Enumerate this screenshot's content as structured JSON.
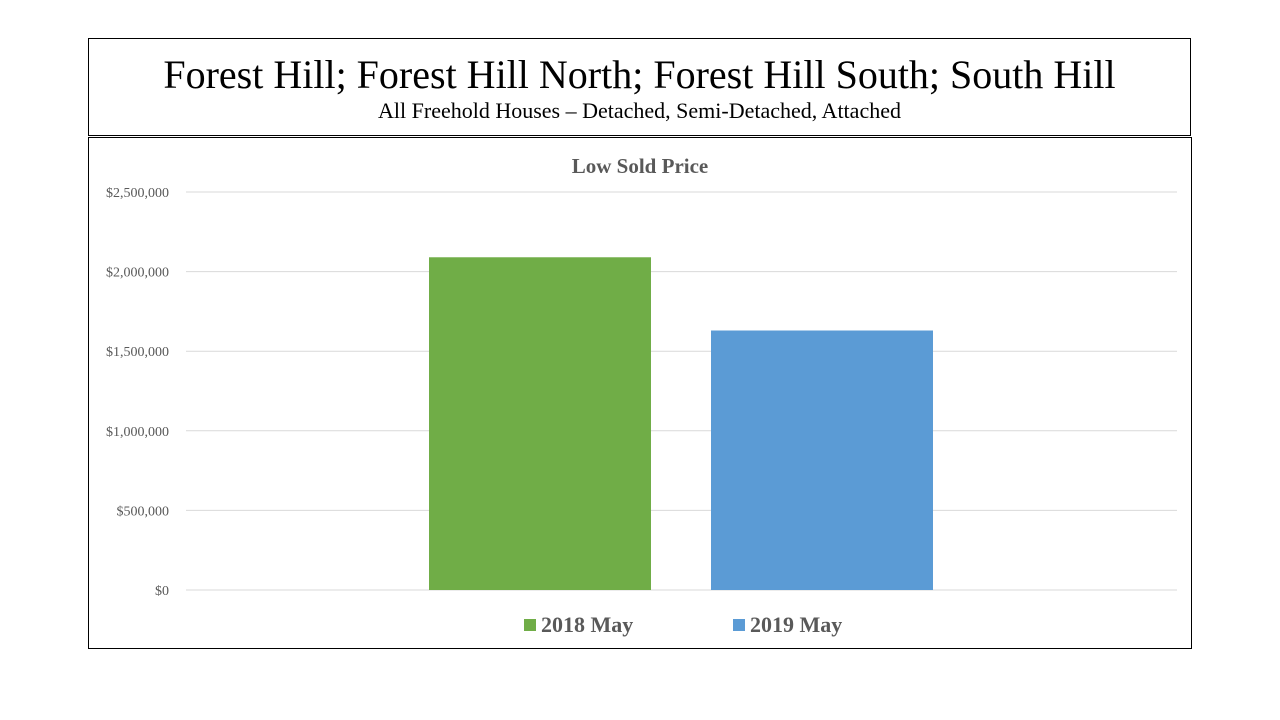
{
  "header": {
    "title": "Forest Hill; Forest Hill North; Forest Hill South; South Hill",
    "subtitle": "All Freehold Houses – Detached, Semi-Detached, Attached"
  },
  "chart_data": {
    "type": "bar",
    "title": "Low Sold Price",
    "xlabel": "",
    "ylabel": "",
    "ylim": [
      0,
      2500000
    ],
    "y_ticks": [
      0,
      500000,
      1000000,
      1500000,
      2000000,
      2500000
    ],
    "y_tick_labels": [
      "$0",
      "$500,000",
      "$1,000,000",
      "$1,500,000",
      "$2,000,000",
      "$2,500,000"
    ],
    "grid": true,
    "legend_position": "bottom",
    "series": [
      {
        "name": "2018 May",
        "values": [
          2090000
        ],
        "color": "#70ad47"
      },
      {
        "name": "2019 May",
        "values": [
          1630000
        ],
        "color": "#5b9bd5"
      }
    ]
  }
}
